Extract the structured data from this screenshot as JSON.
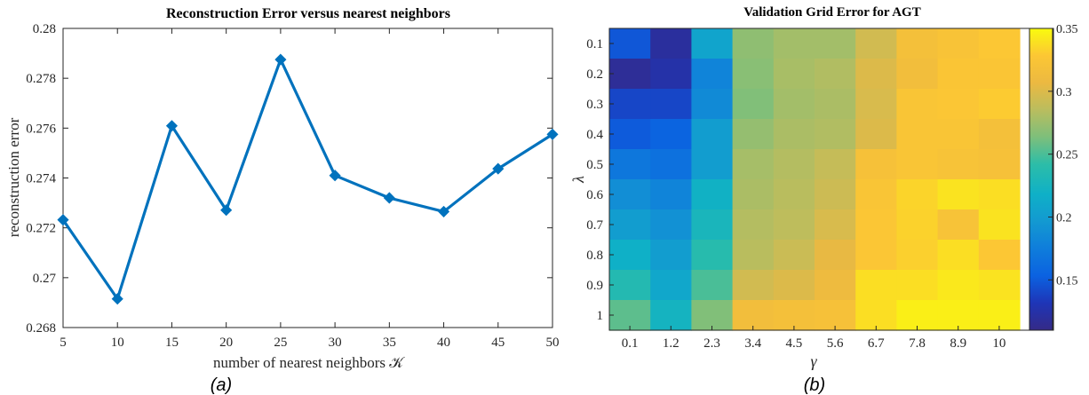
{
  "chart_data": [
    {
      "type": "line",
      "title": "Reconstruction Error versus nearest neighbors",
      "xlabel": "number of nearest neighbors 𝒦",
      "ylabel": "reconstruction error",
      "x": [
        5,
        10,
        15,
        20,
        25,
        30,
        35,
        40,
        45,
        50
      ],
      "series": [
        {
          "values": [
            0.27232,
            0.26915,
            0.27609,
            0.27271,
            0.27875,
            0.2741,
            0.2732,
            0.27265,
            0.27437,
            0.27575
          ]
        }
      ],
      "xlim": [
        5,
        50
      ],
      "ylim": [
        0.268,
        0.28
      ],
      "xticks": [
        "5",
        "10",
        "15",
        "20",
        "25",
        "30",
        "35",
        "40",
        "45",
        "50"
      ],
      "yticks": [
        "0.268",
        "0.27",
        "0.272",
        "0.274",
        "0.276",
        "0.278",
        "0.28"
      ],
      "color": "#0072BD",
      "grid": false,
      "caption": "(a)"
    },
    {
      "type": "heatmap",
      "title": "Validation Grid Error for AGT",
      "xlabel": "γ",
      "ylabel": "λ",
      "x_categories": [
        "0.1",
        "1.2",
        "2.3",
        "3.4",
        "4.5",
        "5.6",
        "6.7",
        "7.8",
        "8.9",
        "10"
      ],
      "y_categories": [
        "0.1",
        "0.2",
        "0.3",
        "0.4",
        "0.5",
        "0.6",
        "0.7",
        "0.8",
        "0.9",
        "1"
      ],
      "values": [
        [
          0.148,
          0.12,
          0.207,
          0.27,
          0.277,
          0.277,
          0.295,
          0.318,
          0.323,
          0.328
        ],
        [
          0.117,
          0.125,
          0.18,
          0.268,
          0.279,
          0.282,
          0.3,
          0.315,
          0.326,
          0.326
        ],
        [
          0.14,
          0.14,
          0.185,
          0.265,
          0.277,
          0.28,
          0.298,
          0.325,
          0.327,
          0.33
        ],
        [
          0.15,
          0.155,
          0.2,
          0.272,
          0.28,
          0.282,
          0.3,
          0.325,
          0.325,
          0.318
        ],
        [
          0.17,
          0.165,
          0.2,
          0.278,
          0.283,
          0.29,
          0.32,
          0.325,
          0.322,
          0.32
        ],
        [
          0.188,
          0.18,
          0.22,
          0.28,
          0.285,
          0.293,
          0.325,
          0.334,
          0.34,
          0.338
        ],
        [
          0.2,
          0.19,
          0.227,
          0.283,
          0.287,
          0.298,
          0.327,
          0.333,
          0.322,
          0.34
        ],
        [
          0.218,
          0.2,
          0.238,
          0.285,
          0.292,
          0.305,
          0.327,
          0.332,
          0.338,
          0.328
        ],
        [
          0.235,
          0.21,
          0.25,
          0.295,
          0.3,
          0.31,
          0.338,
          0.338,
          0.342,
          0.34
        ],
        [
          0.255,
          0.223,
          0.265,
          0.315,
          0.318,
          0.32,
          0.338,
          0.345,
          0.345,
          0.345
        ]
      ],
      "clim": [
        0.11,
        0.35
      ],
      "colorbar_ticks": [
        "0.15",
        "0.2",
        "0.25",
        "0.3",
        "0.35"
      ],
      "colormap": "parula",
      "caption": "(b)"
    }
  ]
}
